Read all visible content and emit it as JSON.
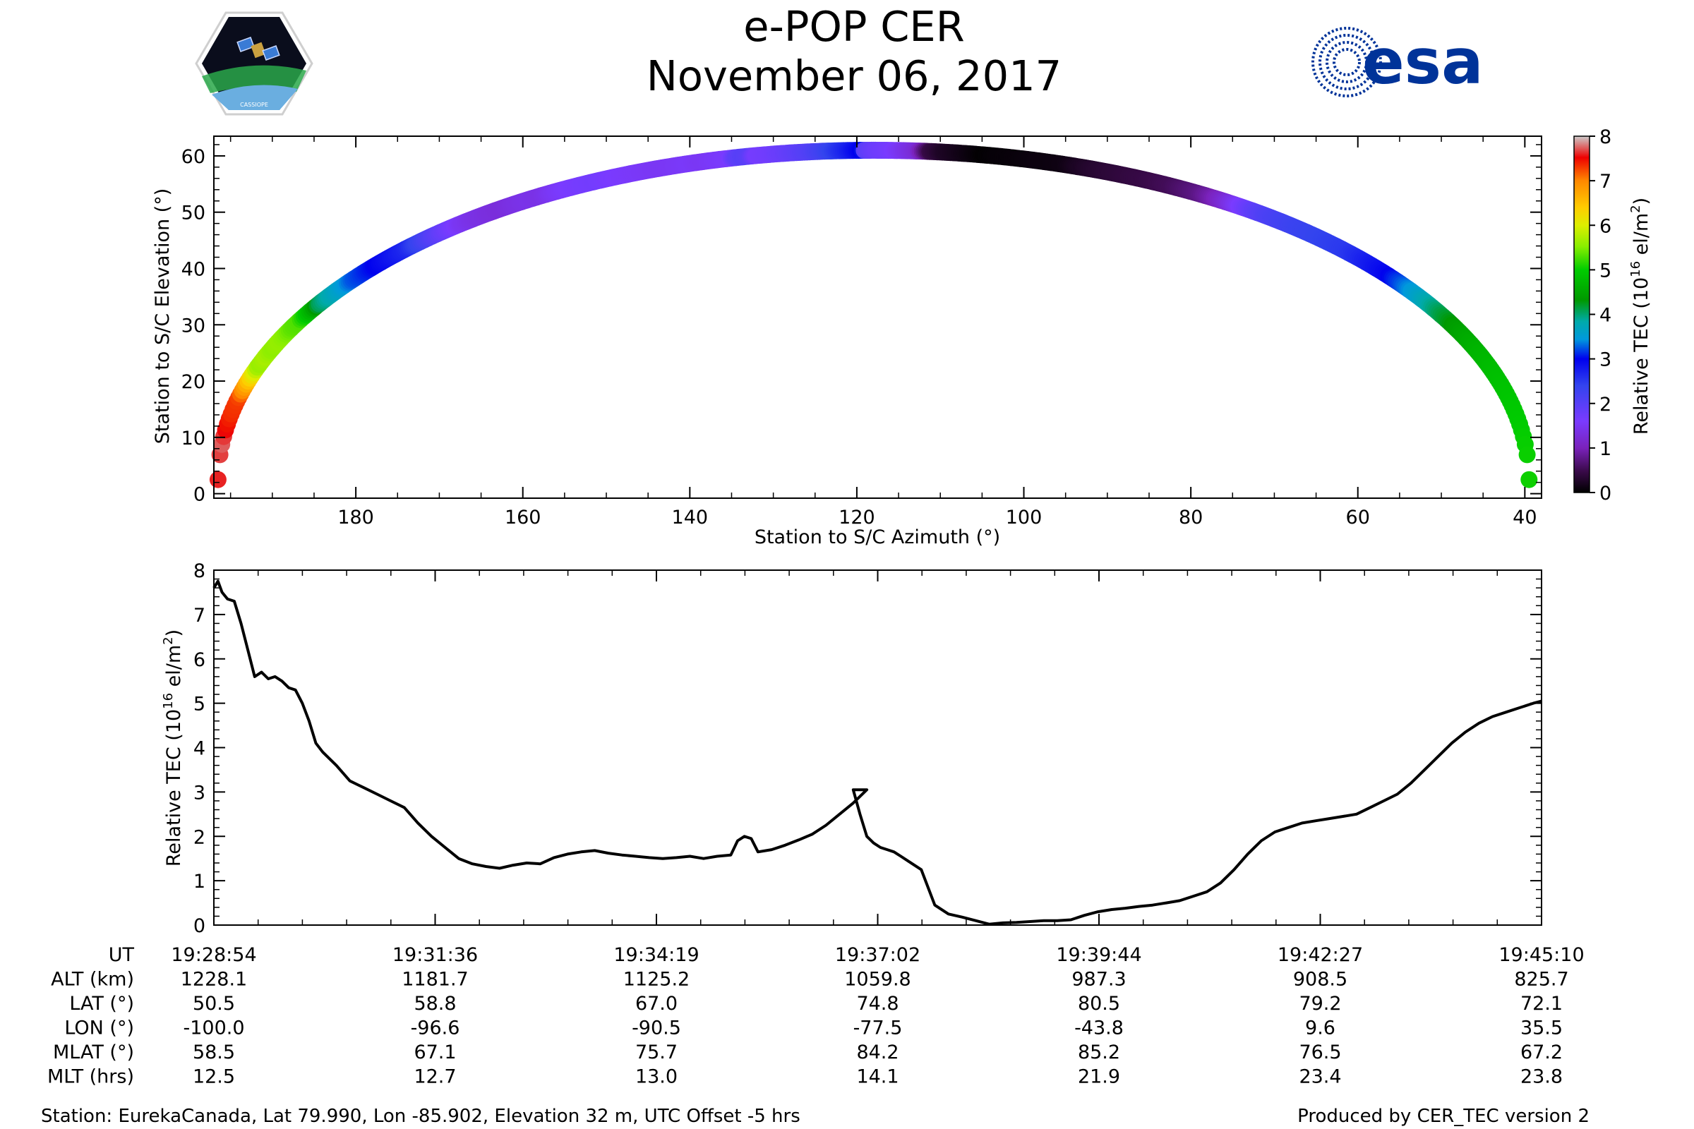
{
  "header": {
    "title": "e-POP CER",
    "date": "November 06, 2017",
    "left_logo": {
      "name": "cassiope-mission-logo",
      "text": "CASSIOPE"
    },
    "right_logo": {
      "name": "esa-logo",
      "text": "esa",
      "color": "#003399"
    }
  },
  "chart_data": [
    {
      "type": "scatter",
      "name": "elevation-azimuth-track",
      "xlabel": "Station to S/C Azimuth (°)",
      "ylabel": "Station to S/C Elevation (°)",
      "xlim": [
        197,
        38
      ],
      "ylim": [
        -0.8,
        63.5
      ],
      "xticks": [
        180,
        160,
        140,
        120,
        100,
        80,
        60,
        40
      ],
      "yticks": [
        0,
        10,
        20,
        30,
        40,
        50,
        60
      ],
      "track": {
        "azimuth_start": 196.5,
        "azimuth_end": 39.5,
        "azimuth_peak": 118.0,
        "elevation_peak": 61.0,
        "elevation_edge": 2.5
      },
      "color_by": "relative_tec",
      "colorbar": {
        "label": "Relative TEC (10",
        "label_exp": "16",
        "label_unit": " el/m",
        "label_unit_exp": "2",
        "label_close": ")",
        "ticks": [
          0,
          1,
          2,
          3,
          4,
          5,
          6,
          7,
          8
        ],
        "range": [
          0,
          8
        ],
        "colormap": "nipy_spectral"
      }
    },
    {
      "type": "line",
      "name": "relative-tec-time-series",
      "ylabel": "Relative TEC (10",
      "ylabel_exp": "16",
      "ylabel_unit": " el/m",
      "ylabel_unit_exp": "2",
      "ylabel_close": ")",
      "ylim": [
        0,
        8
      ],
      "yticks": [
        0,
        1,
        2,
        3,
        4,
        5,
        6,
        7,
        8
      ],
      "x_unit": "seconds since 19:28:54",
      "xlim": [
        0,
        976
      ],
      "line_color": "#000000",
      "x": [
        0,
        3,
        6,
        10,
        15,
        20,
        25,
        30,
        35,
        40,
        45,
        50,
        55,
        60,
        65,
        70,
        75,
        80,
        90,
        100,
        110,
        120,
        130,
        140,
        150,
        160,
        170,
        180,
        190,
        200,
        210,
        220,
        230,
        240,
        250,
        260,
        270,
        280,
        290,
        300,
        310,
        320,
        330,
        340,
        350,
        360,
        370,
        380,
        385,
        390,
        395,
        400,
        410,
        420,
        430,
        440,
        450,
        460,
        470,
        480,
        470,
        475,
        478,
        480,
        485,
        490,
        495,
        500,
        505,
        510,
        520,
        530,
        540,
        550,
        560,
        570,
        580,
        590,
        600,
        610,
        620,
        630,
        640,
        650,
        660,
        670,
        680,
        690,
        700,
        710,
        720,
        730,
        740,
        750,
        760,
        770,
        780,
        790,
        800,
        810,
        820,
        830,
        840,
        850,
        860,
        870,
        880,
        890,
        900,
        910,
        920,
        930,
        940,
        950,
        960,
        970,
        976
      ],
      "y": [
        7.6,
        7.75,
        7.5,
        7.35,
        7.3,
        6.8,
        6.2,
        5.6,
        5.7,
        5.55,
        5.6,
        5.5,
        5.35,
        5.3,
        5.0,
        4.6,
        4.1,
        3.9,
        3.6,
        3.25,
        3.1,
        2.95,
        2.8,
        2.65,
        2.3,
        2.0,
        1.75,
        1.5,
        1.38,
        1.32,
        1.28,
        1.35,
        1.4,
        1.38,
        1.52,
        1.6,
        1.65,
        1.68,
        1.62,
        1.58,
        1.55,
        1.52,
        1.5,
        1.52,
        1.55,
        1.5,
        1.55,
        1.58,
        1.9,
        2.0,
        1.95,
        1.65,
        1.7,
        1.8,
        1.92,
        2.05,
        2.25,
        2.5,
        2.75,
        3.05,
        3.05,
        2.5,
        2.2,
        2.0,
        1.85,
        1.75,
        1.7,
        1.65,
        1.55,
        1.45,
        1.25,
        0.45,
        0.25,
        0.18,
        0.1,
        0.02,
        0.05,
        0.06,
        0.08,
        0.1,
        0.1,
        0.12,
        0.22,
        0.3,
        0.35,
        0.38,
        0.42,
        0.45,
        0.5,
        0.55,
        0.65,
        0.75,
        0.95,
        1.25,
        1.6,
        1.9,
        2.1,
        2.2,
        2.3,
        2.35,
        2.4,
        2.45,
        2.5,
        2.65,
        2.8,
        2.95,
        3.2,
        3.5,
        3.8,
        4.1,
        4.35,
        4.55,
        4.7,
        4.8,
        4.9,
        5.0,
        5.05
      ]
    }
  ],
  "time_axis": {
    "rows": [
      {
        "label": "UT",
        "values": [
          "19:28:54",
          "19:31:36",
          "19:34:19",
          "19:37:02",
          "19:39:44",
          "19:42:27",
          "19:45:10"
        ]
      },
      {
        "label": "ALT (km)",
        "values": [
          "1228.1",
          "1181.7",
          "1125.2",
          "1059.8",
          "987.3",
          "908.5",
          "825.7"
        ]
      },
      {
        "label": "LAT (°)",
        "values": [
          "50.5",
          "58.8",
          "67.0",
          "74.8",
          "80.5",
          "79.2",
          "72.1"
        ]
      },
      {
        "label": "LON (°)",
        "values": [
          "-100.0",
          "-96.6",
          "-90.5",
          "-77.5",
          "-43.8",
          "9.6",
          "35.5"
        ]
      },
      {
        "label": "MLAT (°)",
        "values": [
          "58.5",
          "67.1",
          "75.7",
          "84.2",
          "85.2",
          "76.5",
          "67.2"
        ]
      },
      {
        "label": "MLT (hrs)",
        "values": [
          "12.5",
          "12.7",
          "13.0",
          "14.1",
          "21.9",
          "23.4",
          "23.8"
        ]
      }
    ]
  },
  "footer": {
    "station": "Station: EurekaCanada, Lat 79.990, Lon -85.902, Elevation 32 m, UTC Offset -5 hrs",
    "produced_by": "Produced by CER_TEC version 2"
  }
}
